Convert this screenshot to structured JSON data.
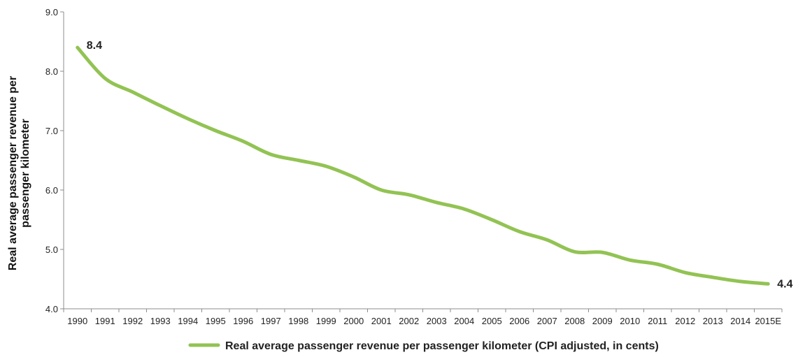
{
  "chart_data": {
    "type": "line",
    "title": "",
    "xlabel": "",
    "ylabel_lines": [
      "Real average passenger revenue per",
      "passenger kilometer"
    ],
    "ylim": [
      4.0,
      9.0
    ],
    "y_ticks": [
      "4.0",
      "5.0",
      "6.0",
      "7.0",
      "8.0",
      "9.0"
    ],
    "categories": [
      "1990",
      "1991",
      "1992",
      "1993",
      "1994",
      "1995",
      "1996",
      "1997",
      "1998",
      "1999",
      "2000",
      "2001",
      "2002",
      "2003",
      "2004",
      "2005",
      "2006",
      "2007",
      "2008",
      "2009",
      "2010",
      "2011",
      "2012",
      "2013",
      "2014",
      "2015E"
    ],
    "series": [
      {
        "name": "Real average passenger revenue per passenger kilometer (CPI adjusted, in cents)",
        "color": "#92c353",
        "values": [
          8.4,
          7.88,
          7.65,
          7.42,
          7.2,
          7.0,
          6.82,
          6.6,
          6.5,
          6.4,
          6.22,
          6.0,
          5.92,
          5.79,
          5.68,
          5.5,
          5.3,
          5.16,
          4.96,
          4.95,
          4.82,
          4.75,
          4.61,
          4.53,
          4.46,
          4.42
        ]
      }
    ],
    "data_labels": [
      {
        "index": 0,
        "text": "8.4"
      },
      {
        "index": 25,
        "text": "4.4"
      }
    ],
    "grid": false,
    "legend_position": "bottom"
  }
}
